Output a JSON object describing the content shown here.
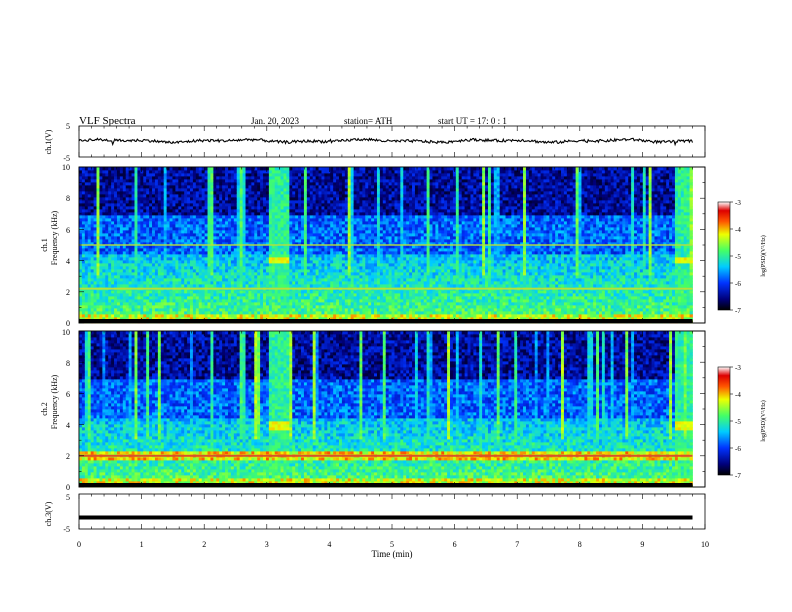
{
  "header": {
    "title": "VLF  Spectra",
    "date": "Jan. 20, 2023",
    "station": "station= ATH",
    "start": "start  UT  =   17: 0  : 1"
  },
  "chart_data": [
    {
      "type": "line",
      "name": "ch1-waveform",
      "ylabel": "ch.1(V)",
      "ylim": [
        -5,
        5
      ],
      "yticks": [
        "5",
        "-5"
      ],
      "xlim": [
        0,
        10
      ],
      "baseline": 0.2
    },
    {
      "type": "heatmap",
      "name": "ch1-spectrogram",
      "ylabel": "Frequency  (kHz)",
      "channel_label": "ch.1",
      "ylim": [
        0,
        10
      ],
      "yticks": [
        "0",
        "2",
        "4",
        "6",
        "8",
        "10"
      ],
      "xlim": [
        0,
        10
      ],
      "colorbar": {
        "label": "log(PSD)(V²/Hz)",
        "ticks": [
          "-3",
          "-4",
          "-5",
          "-6",
          "-7"
        ],
        "range": [
          -7,
          -3
        ]
      },
      "features": {
        "broadband_bursts_min": [
          3.05,
          3.35,
          9.5,
          9.8
        ],
        "burst_band_khz": [
          3.8,
          4.3
        ],
        "noise_band_khz": [
          0,
          2.2
        ]
      }
    },
    {
      "type": "heatmap",
      "name": "ch2-spectrogram",
      "ylabel": "Frequency  (kHz)",
      "channel_label": "ch.2",
      "ylim": [
        0,
        10
      ],
      "yticks": [
        "0",
        "2",
        "4",
        "6",
        "8",
        "10"
      ],
      "xlim": [
        0,
        10
      ],
      "colorbar": {
        "label": "log(PSD)(V²/Hz)",
        "ticks": [
          "-3",
          "-4",
          "-5",
          "-6",
          "-7"
        ],
        "range": [
          -7,
          -3
        ]
      },
      "features": {
        "broadband_bursts_min": [
          3.05,
          3.35,
          9.5,
          9.8
        ],
        "burst_band_khz": [
          3.7,
          4.3
        ],
        "strong_line_khz": 2.0
      }
    },
    {
      "type": "line",
      "name": "ch3-waveform",
      "ylabel": "ch.3(V)",
      "ylim": [
        -5,
        5
      ],
      "yticks": [
        "5",
        "-5"
      ],
      "xlim": [
        0,
        10
      ],
      "baseline": -1.7
    }
  ],
  "xaxis": {
    "label": "Time  (min)",
    "ticks": [
      "0",
      "1",
      "2",
      "3",
      "4",
      "5",
      "6",
      "7",
      "8",
      "9",
      "10"
    ],
    "data_end_min": 9.8
  }
}
